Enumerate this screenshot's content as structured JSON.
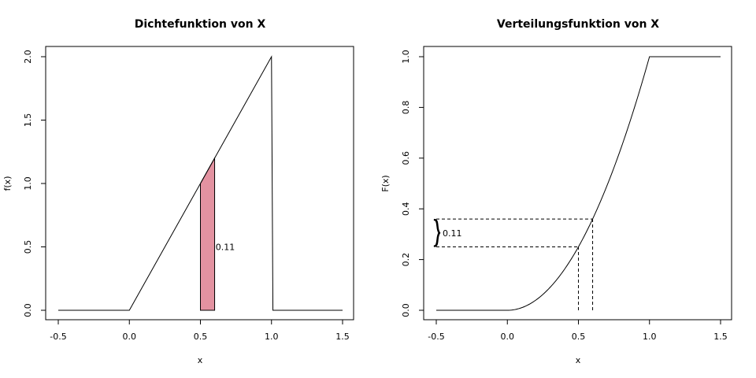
{
  "chart_data": [
    {
      "type": "line",
      "title": "Dichtefunktion von X",
      "xlabel": "x",
      "ylabel": "f(x)",
      "xlim": [
        -0.5,
        1.5
      ],
      "ylim": [
        0,
        2
      ],
      "xticks": [
        "-0.5",
        "0.0",
        "0.5",
        "1.0",
        "1.5"
      ],
      "yticks": [
        "0.0",
        "0.5",
        "1.0",
        "1.5",
        "2.0"
      ],
      "series": [
        {
          "x": [
            -0.5,
            0.0,
            1.0,
            1.01,
            1.5
          ],
          "y": [
            0,
            0,
            2,
            0,
            0
          ]
        }
      ],
      "shaded_region": {
        "x_from": 0.5,
        "x_to": 0.6,
        "color": "#e392a1"
      },
      "annotation": {
        "text": "0.11",
        "x": 0.64,
        "y": 0.5
      }
    },
    {
      "type": "line",
      "title": "Verteilungsfunktion von X",
      "xlabel": "x",
      "ylabel": "F(x)",
      "xlim": [
        -0.5,
        1.5
      ],
      "ylim": [
        0,
        1
      ],
      "xticks": [
        "-0.5",
        "0.0",
        "0.5",
        "1.0",
        "1.5"
      ],
      "yticks": [
        "0.0",
        "0.2",
        "0.4",
        "0.6",
        "0.8",
        "1.0"
      ],
      "series": [
        {
          "function": "F(x) = 0 for x<0, x^2 for 0<=x<=1, 1 for x>1",
          "x_range": [
            -0.5,
            1.5
          ]
        }
      ],
      "reference_lines": [
        {
          "x": 0.5,
          "y": 0.25
        },
        {
          "x": 0.6,
          "y": 0.36
        }
      ],
      "annotation": {
        "text": "0.11",
        "y_from": 0.25,
        "y_to": 0.36
      }
    }
  ]
}
